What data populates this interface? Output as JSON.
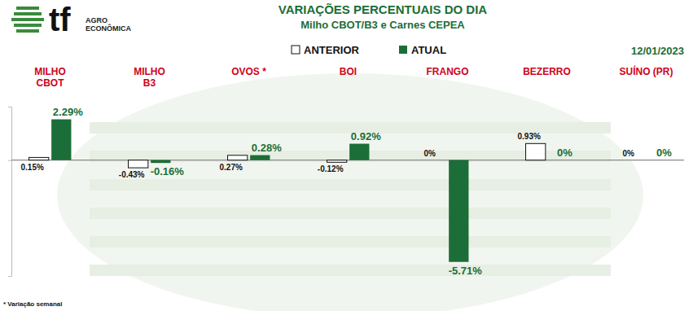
{
  "header": {
    "logo": "tf",
    "logo_caption": [
      "AGRO",
      "ECONÔMICA"
    ]
  },
  "chart_data": {
    "type": "bar",
    "title": "VARIAÇÕES PERCENTUAIS DO DIA",
    "subtitle": "Milho CBOT/B3 e Carnes CEPEA",
    "date": "12/01/2023",
    "footnote": "* Variação semanal",
    "categories": [
      "MILHO\nCBOT",
      "MILHO\nB3",
      "OVOS *",
      "BOI",
      "FRANGO",
      "BEZERRO",
      "SUÍNO (PR)"
    ],
    "series": [
      {
        "name": "ANTERIOR",
        "color": "#ffffff",
        "values": [
          0.15,
          -0.43,
          0.27,
          -0.12,
          0,
          0.93,
          0
        ],
        "value_labels": [
          "0.15%",
          "-0.43%",
          "0.27%",
          "-0.12%",
          "0%",
          "0.93%",
          "0%"
        ]
      },
      {
        "name": "ATUAL",
        "color": "#1b6e37",
        "values": [
          2.29,
          -0.16,
          0.28,
          0.92,
          -5.71,
          0,
          0
        ],
        "value_labels": [
          "2.29%",
          "-0.16%",
          "0.28%",
          "0.92%",
          "-5.71%",
          "0%",
          "0%"
        ]
      }
    ],
    "ylim": [
      -6.5,
      3
    ],
    "yticks": [
      0
    ],
    "grid": true,
    "legend": "top",
    "data_labels": true,
    "tick_labels": false
  }
}
